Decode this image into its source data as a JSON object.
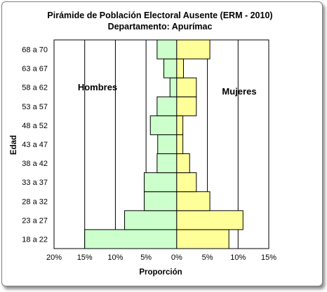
{
  "chart_data": {
    "type": "bar",
    "orientation": "horizontal-pyramid",
    "title": "Pirámide de Población Electoral Ausente (ERM - 2010)",
    "subtitle": "Departamento: Apurímac",
    "xlabel": "Proporción",
    "ylabel": "Edad",
    "xlim": [
      -20,
      15
    ],
    "xticks": [
      -20,
      -15,
      -10,
      -5,
      0,
      5,
      10,
      15
    ],
    "xtick_labels": [
      "20%",
      "15%",
      "10%",
      "5%",
      "0%",
      "5%",
      "10%",
      "15%"
    ],
    "grid": "vertical",
    "categories": [
      "18 a 22",
      "23 a 27",
      "28 a 32",
      "33 a 37",
      "38 a 42",
      "43 a 47",
      "48 a 52",
      "53 a 57",
      "58 a 62",
      "63 a 67",
      "68 a 70"
    ],
    "series": [
      {
        "name": "Hombres",
        "color": "#ccffcc",
        "values": [
          15.0,
          8.5,
          5.3,
          5.3,
          3.2,
          3.1,
          4.3,
          3.2,
          1.1,
          2.1,
          3.2
        ]
      },
      {
        "name": "Mujeres",
        "color": "#ffff99",
        "values": [
          8.5,
          10.8,
          5.4,
          3.2,
          2.1,
          1.0,
          1.0,
          3.2,
          3.2,
          1.1,
          5.4
        ]
      }
    ]
  }
}
